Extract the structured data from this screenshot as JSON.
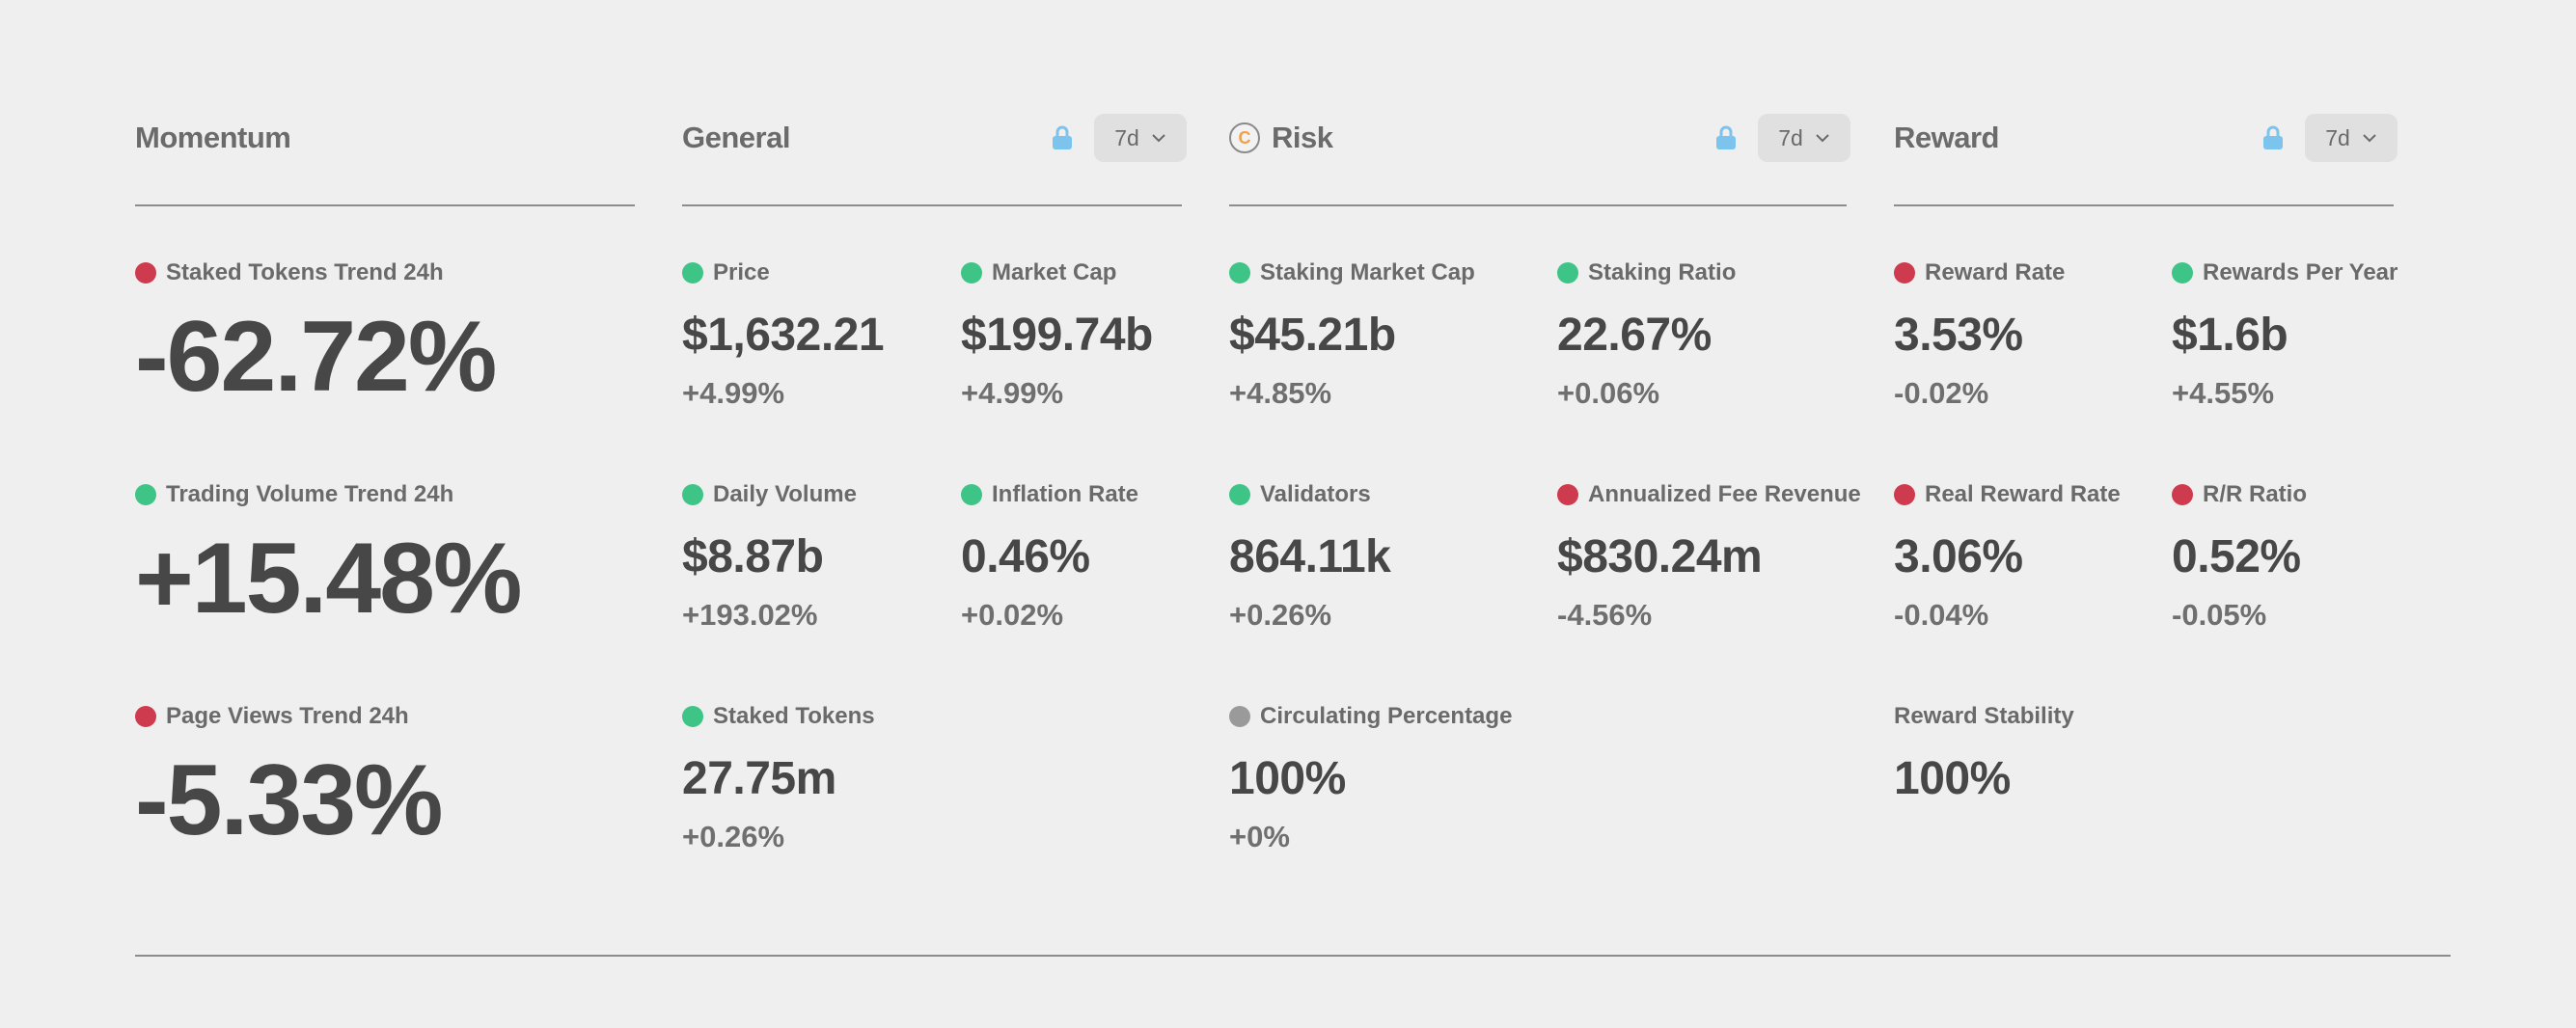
{
  "colors": {
    "positive": "#3ec487",
    "negative": "#cf3b4e",
    "neutral": "#9a9a9a",
    "lock": "#7cc3ee",
    "coin": "#f0a24a"
  },
  "momentum": {
    "title": "Momentum",
    "metrics": [
      {
        "label": "Staked Tokens Trend 24h",
        "status": "negative",
        "value": "-62.72%"
      },
      {
        "label": "Trading Volume Trend 24h",
        "status": "positive",
        "value": "+15.48%"
      },
      {
        "label": "Page Views Trend 24h",
        "status": "negative",
        "value": "-5.33%"
      }
    ]
  },
  "general": {
    "title": "General",
    "period": "7d",
    "metrics": [
      {
        "label": "Price",
        "status": "positive",
        "value": "$1,632.21",
        "change": "+4.99%"
      },
      {
        "label": "Market Cap",
        "status": "positive",
        "value": "$199.74b",
        "change": "+4.99%"
      },
      {
        "label": "Daily Volume",
        "status": "positive",
        "value": "$8.87b",
        "change": "+193.02%"
      },
      {
        "label": "Inflation Rate",
        "status": "positive",
        "value": "0.46%",
        "change": "+0.02%"
      },
      {
        "label": "Staked Tokens",
        "status": "positive",
        "value": "27.75m",
        "change": "+0.26%"
      }
    ]
  },
  "risk": {
    "title": "Risk",
    "icon": "coin-c-icon",
    "icon_letter": "C",
    "period": "7d",
    "metrics": [
      {
        "label": "Staking Market Cap",
        "status": "positive",
        "value": "$45.21b",
        "change": "+4.85%"
      },
      {
        "label": "Staking Ratio",
        "status": "positive",
        "value": "22.67%",
        "change": "+0.06%"
      },
      {
        "label": "Validators",
        "status": "positive",
        "value": "864.11k",
        "change": "+0.26%"
      },
      {
        "label": "Annualized Fee Revenue",
        "status": "negative",
        "value": "$830.24m",
        "change": "-4.56%"
      },
      {
        "label": "Circulating Percentage",
        "status": "neutral",
        "value": "100%",
        "change": "+0%"
      }
    ]
  },
  "reward": {
    "title": "Reward",
    "period": "7d",
    "metrics": [
      {
        "label": "Reward Rate",
        "status": "negative",
        "value": "3.53%",
        "change": "-0.02%"
      },
      {
        "label": "Rewards Per Year",
        "status": "positive",
        "value": "$1.6b",
        "change": "+4.55%"
      },
      {
        "label": "Real Reward Rate",
        "status": "negative",
        "value": "3.06%",
        "change": "-0.04%"
      },
      {
        "label": "R/R Ratio",
        "status": "negative",
        "value": "0.52%",
        "change": "-0.05%"
      },
      {
        "label": "Reward Stability",
        "value": "100%"
      }
    ]
  }
}
